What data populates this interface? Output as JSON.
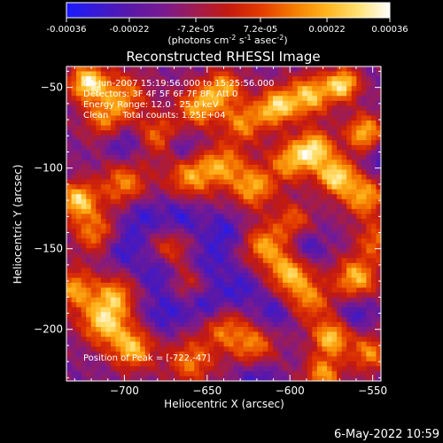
{
  "colorbar": {
    "tick_labels": [
      "-0.00036",
      "-0.00022",
      "-7.2e-05",
      "7.2e-05",
      "0.00022",
      "0.00036"
    ],
    "tick_values": [
      -0.00036,
      -0.00022,
      -7.2e-05,
      7.2e-05,
      0.00022,
      0.00036
    ],
    "range": [
      -0.00036,
      0.00036
    ],
    "units_main": "(photons cm",
    "units_exp1": "-2",
    "units_mid": " s",
    "units_exp2": "-1",
    "units_end": " asec",
    "units_exp3": "-2",
    "units_close": ")",
    "colormap": [
      "#1a1aff",
      "#3a1ad0",
      "#5a18a8",
      "#7a1a90",
      "#a01c50",
      "#c41a10",
      "#e23a00",
      "#f47a00",
      "#ffb21a",
      "#ffe070",
      "#ffffff"
    ]
  },
  "chart_data": {
    "type": "heatmap",
    "title": "Reconstructed RHESSI Image",
    "xlabel": "Heliocentric X (arcsec)",
    "ylabel": "Heliocentric Y (arcsec)",
    "xlim": [
      -735,
      -545
    ],
    "ylim": [
      -232,
      -37
    ],
    "x_ticks": [
      -700,
      -650,
      -600,
      -550
    ],
    "x_tick_labels": [
      "−700",
      "−650",
      "−600",
      "−550"
    ],
    "y_ticks": [
      -50,
      -100,
      -150,
      -200
    ],
    "y_tick_labels": [
      "−50",
      "−100",
      "−150",
      "−200"
    ],
    "peak_position": [
      -722,
      -47
    ],
    "info_lines": [
      "04-Jun-2007 15:19:56.000 to 15:25:56.000",
      "Detectors: 3F 4F 5F 6F 7F 8F, Att 0",
      "Energy Range: 12.0 - 25.0 keV",
      "Clean     Total counts: 1.25E+04"
    ],
    "peak_label": "Position of Peak = [-722,-47]"
  },
  "footer": {
    "timestamp": "6-May-2022 10:59"
  }
}
